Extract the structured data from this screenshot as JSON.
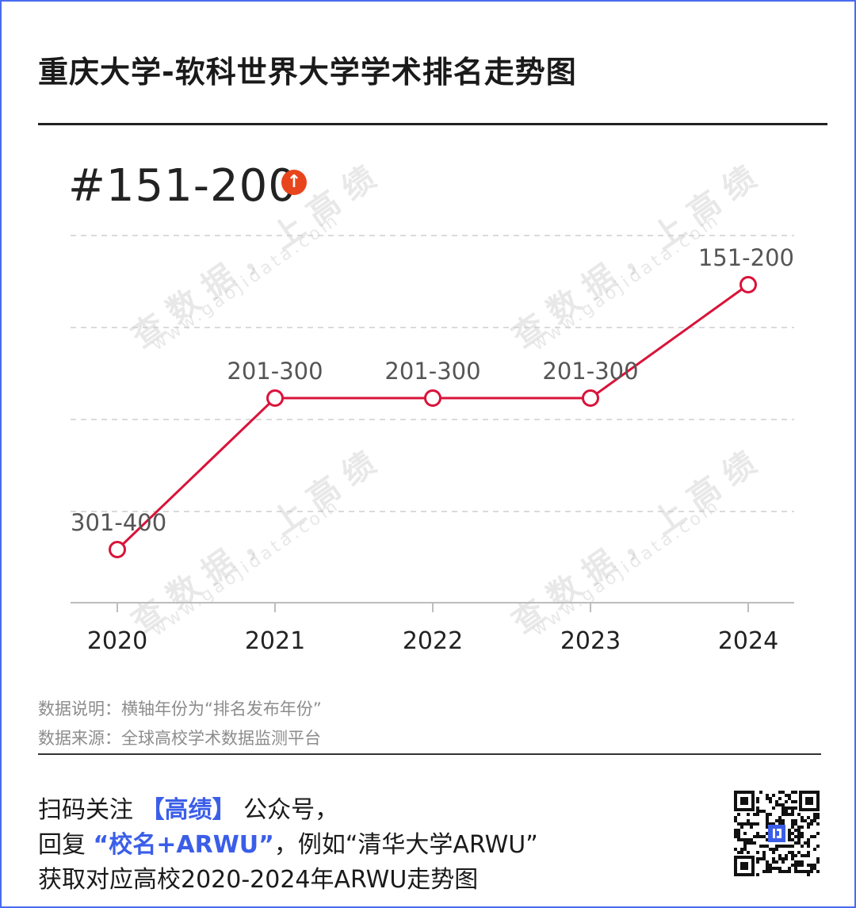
{
  "header": {
    "title": "重庆大学-软科世界大学学术排名走势图"
  },
  "current": {
    "rank": "#151-200",
    "trend_icon": "arrow-up-icon",
    "trend_color": "#e8451d"
  },
  "chart_data": {
    "type": "line",
    "title": "重庆大学-软科世界大学学术排名走势图",
    "categories": [
      "2020",
      "2021",
      "2022",
      "2023",
      "2024"
    ],
    "series": [
      {
        "values": [
          "301-400",
          "201-300",
          "201-300",
          "201-300",
          "151-200"
        ]
      }
    ],
    "y_levels": [
      "301-400",
      "201-300",
      "151-200"
    ],
    "line_color": "#d9133a",
    "grid": true
  },
  "watermark": {
    "text": "查数据，上高绩",
    "url": "www.gaojidata.com"
  },
  "notes": {
    "line1": "数据说明：横轴年份为“排名发布年份”",
    "line2": "数据来源：全球高校学术数据监测平台"
  },
  "footer": {
    "line1_a": "扫码关注",
    "line1_b": "【高绩】",
    "line1_c": "公众号，",
    "line2_a": "回复",
    "line2_b": "“校名+ARWU”",
    "line2_c": "，例如“清华大学ARWU”",
    "line3": "获取对应高校2020-2024年ARWU走势图",
    "qr_icon": "qr-code-icon",
    "accent": "#3b5ee8"
  }
}
